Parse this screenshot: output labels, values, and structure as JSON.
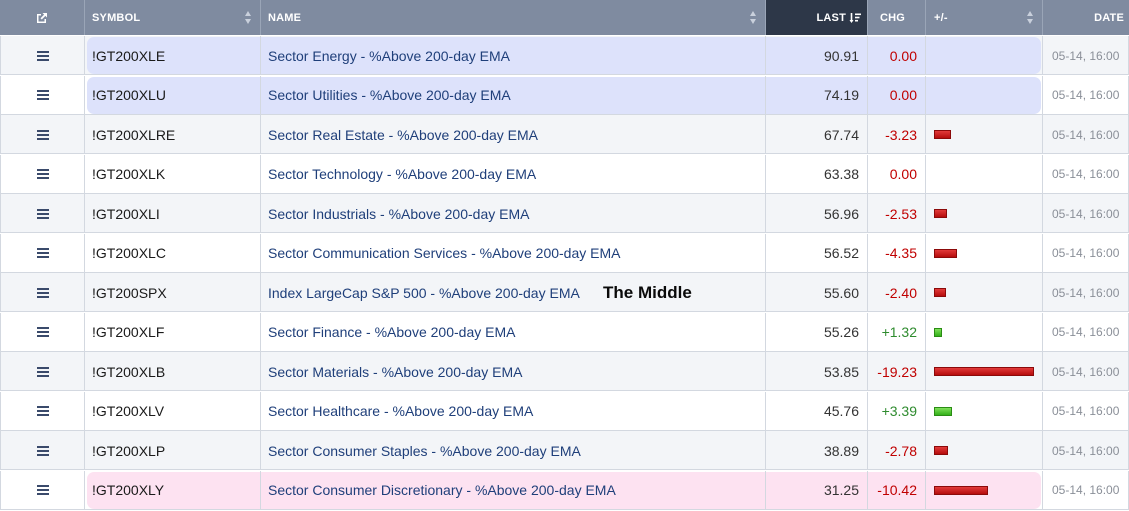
{
  "header": {
    "symbol": "SYMBOL",
    "name": "NAME",
    "last": "LAST",
    "chg": "CHG",
    "plusminus": "+/-",
    "date": "DATE",
    "active_sort": "last"
  },
  "colors": {
    "positive": "#2e8b2e",
    "negative": "#c00000",
    "zero": "#c00000",
    "highlight_blue": "#dde2fb",
    "highlight_pink": "#fde2f1"
  },
  "annotation": "The Middle",
  "rows": [
    {
      "symbol": "!GT200XLE",
      "name": "Sector Energy - %Above 200-day EMA",
      "last": "90.91",
      "chg": "0.00",
      "chg_value": 0,
      "date": "05-14, 16:00",
      "highlight": "blue"
    },
    {
      "symbol": "!GT200XLU",
      "name": "Sector Utilities - %Above 200-day EMA",
      "last": "74.19",
      "chg": "0.00",
      "chg_value": 0,
      "date": "05-14, 16:00",
      "highlight": "blue"
    },
    {
      "symbol": "!GT200XLRE",
      "name": "Sector Real Estate - %Above 200-day EMA",
      "last": "67.74",
      "chg": "-3.23",
      "chg_value": -3.23,
      "date": "05-14, 16:00",
      "highlight": ""
    },
    {
      "symbol": "!GT200XLK",
      "name": "Sector Technology - %Above 200-day EMA",
      "last": "63.38",
      "chg": "0.00",
      "chg_value": 0,
      "date": "05-14, 16:00",
      "highlight": ""
    },
    {
      "symbol": "!GT200XLI",
      "name": "Sector Industrials - %Above 200-day EMA",
      "last": "56.96",
      "chg": "-2.53",
      "chg_value": -2.53,
      "date": "05-14, 16:00",
      "highlight": ""
    },
    {
      "symbol": "!GT200XLC",
      "name": "Sector Communication Services - %Above 200-day EMA",
      "last": "56.52",
      "chg": "-4.35",
      "chg_value": -4.35,
      "date": "05-14, 16:00",
      "highlight": ""
    },
    {
      "symbol": "!GT200SPX",
      "name": "Index LargeCap S&P 500 - %Above 200-day EMA",
      "last": "55.60",
      "chg": "-2.40",
      "chg_value": -2.4,
      "date": "05-14, 16:00",
      "highlight": ""
    },
    {
      "symbol": "!GT200XLF",
      "name": "Sector Finance - %Above 200-day EMA",
      "last": "55.26",
      "chg": "+1.32",
      "chg_value": 1.32,
      "date": "05-14, 16:00",
      "highlight": ""
    },
    {
      "symbol": "!GT200XLB",
      "name": "Sector Materials - %Above 200-day EMA",
      "last": "53.85",
      "chg": "-19.23",
      "chg_value": -19.23,
      "date": "05-14, 16:00",
      "highlight": ""
    },
    {
      "symbol": "!GT200XLV",
      "name": "Sector Healthcare - %Above 200-day EMA",
      "last": "45.76",
      "chg": "+3.39",
      "chg_value": 3.39,
      "date": "05-14, 16:00",
      "highlight": ""
    },
    {
      "symbol": "!GT200XLP",
      "name": "Sector Consumer Staples - %Above 200-day EMA",
      "last": "38.89",
      "chg": "-2.78",
      "chg_value": -2.78,
      "date": "05-14, 16:00",
      "highlight": ""
    },
    {
      "symbol": "!GT200XLY",
      "name": "Sector Consumer Discretionary - %Above 200-day EMA",
      "last": "31.25",
      "chg": "-10.42",
      "chg_value": -10.42,
      "date": "05-14, 16:00",
      "highlight": "pink"
    }
  ]
}
